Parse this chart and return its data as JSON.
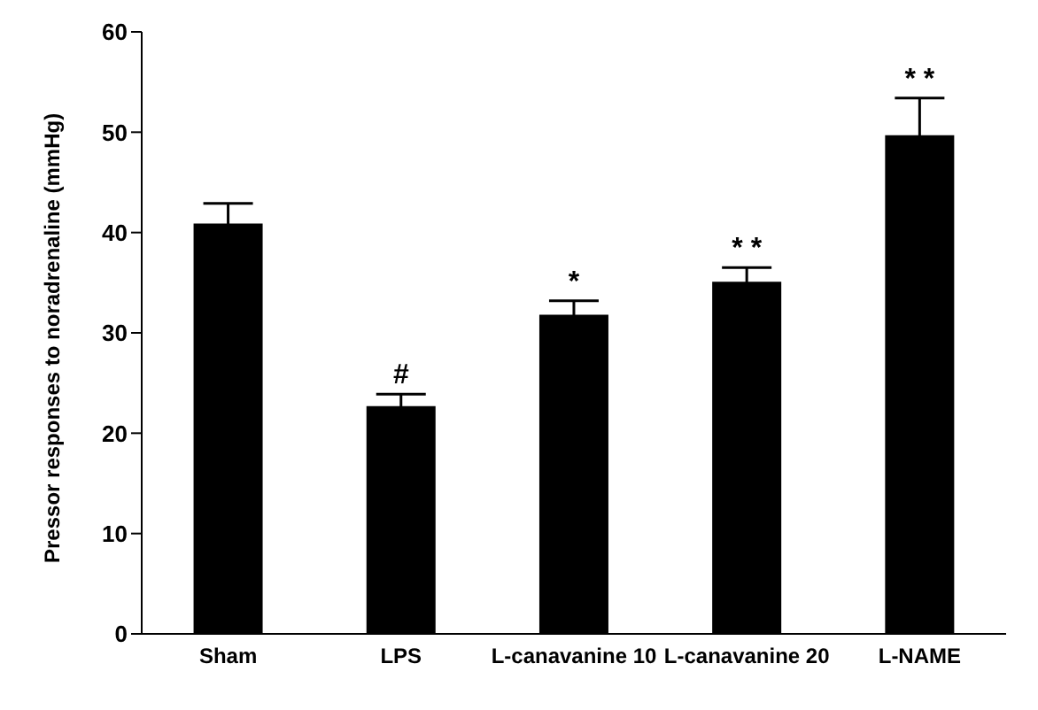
{
  "chart_data": {
    "type": "bar",
    "ylabel": "Pressor responses to noradrenaline (mmHg)",
    "categories": [
      "Sham",
      "LPS",
      "L-canavanine 10",
      "L-canavanine 20",
      "L-NAME"
    ],
    "values": [
      40.9,
      22.7,
      31.8,
      35.1,
      49.7
    ],
    "errors": [
      2.0,
      1.2,
      1.4,
      1.4,
      3.7
    ],
    "color": "#000000",
    "ylim": [
      0,
      60
    ],
    "yticks": [
      0,
      10,
      20,
      30,
      40,
      50,
      60
    ],
    "grid": false,
    "legend": false,
    "annotations": [
      {
        "text": "#",
        "x": "LPS",
        "y": 23.9
      },
      {
        "text": "*",
        "x": "L-canavanine 10",
        "y": 33.2
      },
      {
        "text": "* *",
        "x": "L-canavanine 20",
        "y": 36.5
      },
      {
        "text": "* *",
        "x": "L-NAME",
        "y": 53.4
      }
    ]
  }
}
